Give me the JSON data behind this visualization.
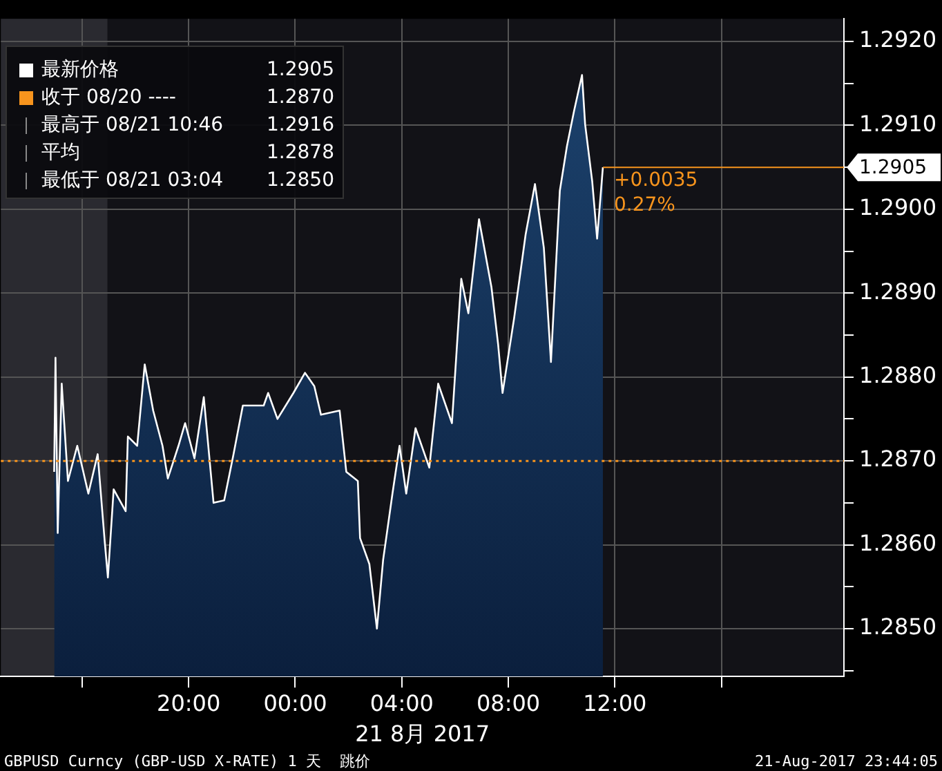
{
  "chart_data": {
    "type": "area",
    "title": "GBPUSD Curncy (GBP-USD X-RATE) 1 天  跳价",
    "subtitle": "21-Aug-2017 23:44:05",
    "xlabel": "21 8月 2017",
    "x": [
      "2017-08-20T14:57",
      "2017-08-20T15:00",
      "2017-08-20T15:05",
      "2017-08-20T15:14",
      "2017-08-20T15:28",
      "2017-08-20T15:49",
      "2017-08-20T16:14",
      "2017-08-20T16:35",
      "2017-08-20T16:51",
      "2017-08-20T16:58",
      "2017-08-20T17:11",
      "2017-08-20T17:38",
      "2017-08-20T17:43",
      "2017-08-20T18:04",
      "2017-08-20T18:21",
      "2017-08-20T18:40",
      "2017-08-20T19:01",
      "2017-08-20T19:13",
      "2017-08-20T19:37",
      "2017-08-20T19:52",
      "2017-08-20T20:13",
      "2017-08-20T20:34",
      "2017-08-20T20:56",
      "2017-08-20T21:20",
      "2017-08-20T21:41",
      "2017-08-20T22:02",
      "2017-08-20T22:49",
      "2017-08-20T22:59",
      "2017-08-20T23:20",
      "2017-08-20T23:56",
      "2017-08-21T00:22",
      "2017-08-21T00:43",
      "2017-08-21T00:58",
      "2017-08-21T01:40",
      "2017-08-21T01:55",
      "2017-08-21T02:21",
      "2017-08-21T02:26",
      "2017-08-21T02:47",
      "2017-08-21T03:04",
      "2017-08-21T03:18",
      "2017-08-21T03:39",
      "2017-08-21T03:55",
      "2017-08-21T04:10",
      "2017-08-21T04:31",
      "2017-08-21T05:02",
      "2017-08-21T05:22",
      "2017-08-21T05:53",
      "2017-08-21T06:14",
      "2017-08-21T06:30",
      "2017-08-21T06:54",
      "2017-08-21T07:22",
      "2017-08-21T07:37",
      "2017-08-21T07:47",
      "2017-08-21T08:13",
      "2017-08-21T08:39",
      "2017-08-21T09:00",
      "2017-08-21T09:20",
      "2017-08-21T09:36",
      "2017-08-21T09:56",
      "2017-08-21T10:12",
      "2017-08-21T10:28",
      "2017-08-21T10:46",
      "2017-08-21T10:53",
      "2017-08-21T11:09",
      "2017-08-21T11:20",
      "2017-08-21T11:33"
    ],
    "series": [
      {
        "name": "最新价格",
        "color": "#ffffff",
        "values": [
          1.28687,
          1.28823,
          1.28614,
          1.28792,
          1.28676,
          1.28718,
          1.28661,
          1.28708,
          1.28603,
          1.28561,
          1.28666,
          1.2864,
          1.28729,
          1.28718,
          1.28815,
          1.2876,
          1.28718,
          1.28679,
          1.28718,
          1.28745,
          1.28703,
          1.28776,
          1.2865,
          1.28653,
          1.28708,
          1.28766,
          1.28766,
          1.28781,
          1.2875,
          1.28781,
          1.28805,
          1.28789,
          1.28755,
          1.2876,
          1.28687,
          1.28676,
          1.28608,
          1.28577,
          1.285,
          1.28582,
          1.28661,
          1.28718,
          1.28661,
          1.28739,
          1.28692,
          1.28792,
          1.28745,
          1.28917,
          1.28876,
          1.28988,
          1.28907,
          1.28839,
          1.28781,
          1.2887,
          1.2897,
          1.2903,
          1.28954,
          1.28818,
          1.29022,
          1.29075,
          1.29117,
          1.2916,
          1.29101,
          1.29033,
          1.28965,
          1.2905
        ],
        "value_labels": [
          null,
          null,
          null,
          null,
          null,
          null,
          null,
          null,
          null,
          null,
          null,
          null,
          null,
          null,
          null,
          null,
          null,
          null,
          null,
          null,
          null,
          null,
          null,
          null,
          null,
          null,
          null,
          null,
          null,
          null,
          null,
          null,
          null,
          null,
          null,
          null,
          null,
          null,
          null,
          null,
          null,
          null,
          null,
          null,
          null,
          null,
          null,
          null,
          null,
          null,
          null,
          null,
          null,
          null,
          null,
          null,
          null,
          null,
          null,
          null,
          null,
          null,
          null,
          null,
          null,
          "1.2905"
        ]
      }
    ],
    "xlim": [
      "2017-08-20T12:57",
      "2017-08-21T20:36"
    ],
    "xticks": [
      {
        "value": "2017-08-20T16:00",
        "label": null
      },
      {
        "value": "2017-08-20T20:00",
        "label": "20:00"
      },
      {
        "value": "2017-08-21T00:00",
        "label": "00:00"
      },
      {
        "value": "2017-08-21T04:00",
        "label": "04:00"
      },
      {
        "value": "2017-08-21T08:00",
        "label": "08:00"
      },
      {
        "value": "2017-08-21T12:00",
        "label": "12:00"
      },
      {
        "value": "2017-08-21T16:00",
        "label": null
      }
    ],
    "ylim": [
      1.28443,
      1.29227
    ],
    "yticks": [
      {
        "value": 1.2845,
        "label": null
      },
      {
        "value": 1.285,
        "label": "1.2850"
      },
      {
        "value": 1.2855,
        "label": null
      },
      {
        "value": 1.286,
        "label": "1.2860"
      },
      {
        "value": 1.2865,
        "label": null
      },
      {
        "value": 1.287,
        "label": "1.2870"
      },
      {
        "value": 1.2875,
        "label": null
      },
      {
        "value": 1.288,
        "label": "1.2880"
      },
      {
        "value": 1.2885,
        "label": null
      },
      {
        "value": 1.289,
        "label": "1.2890"
      },
      {
        "value": 1.2895,
        "label": null
      },
      {
        "value": 1.29,
        "label": "1.2900"
      },
      {
        "value": 1.2905,
        "label": null
      },
      {
        "value": 1.291,
        "label": "1.2910"
      },
      {
        "value": 1.2915,
        "label": null
      },
      {
        "value": 1.292,
        "label": "1.2920"
      }
    ],
    "ref_lines": [
      {
        "axis": "y",
        "value": 1.287,
        "label": "收于 08/20 ---- 1.2870",
        "color": "#f7941d",
        "line_style": "dotted"
      }
    ],
    "bands": [
      {
        "axis": "x",
        "from": "2017-08-20T12:57",
        "to": "2017-08-20T16:57",
        "color": "#2a2a30"
      }
    ],
    "annotations": [
      "最高于 08/21 10:46 1.2916",
      "平均 1.2878",
      "最低于 08/21 03:04 1.2850",
      {
        "text": "+0.0035",
        "x": "2017-08-21T11:33",
        "y": 1.2905
      },
      {
        "text": "0.27%",
        "x": "2017-08-21T11:33",
        "y": 1.2905
      }
    ],
    "grid": true,
    "legend": "top left"
  }
}
